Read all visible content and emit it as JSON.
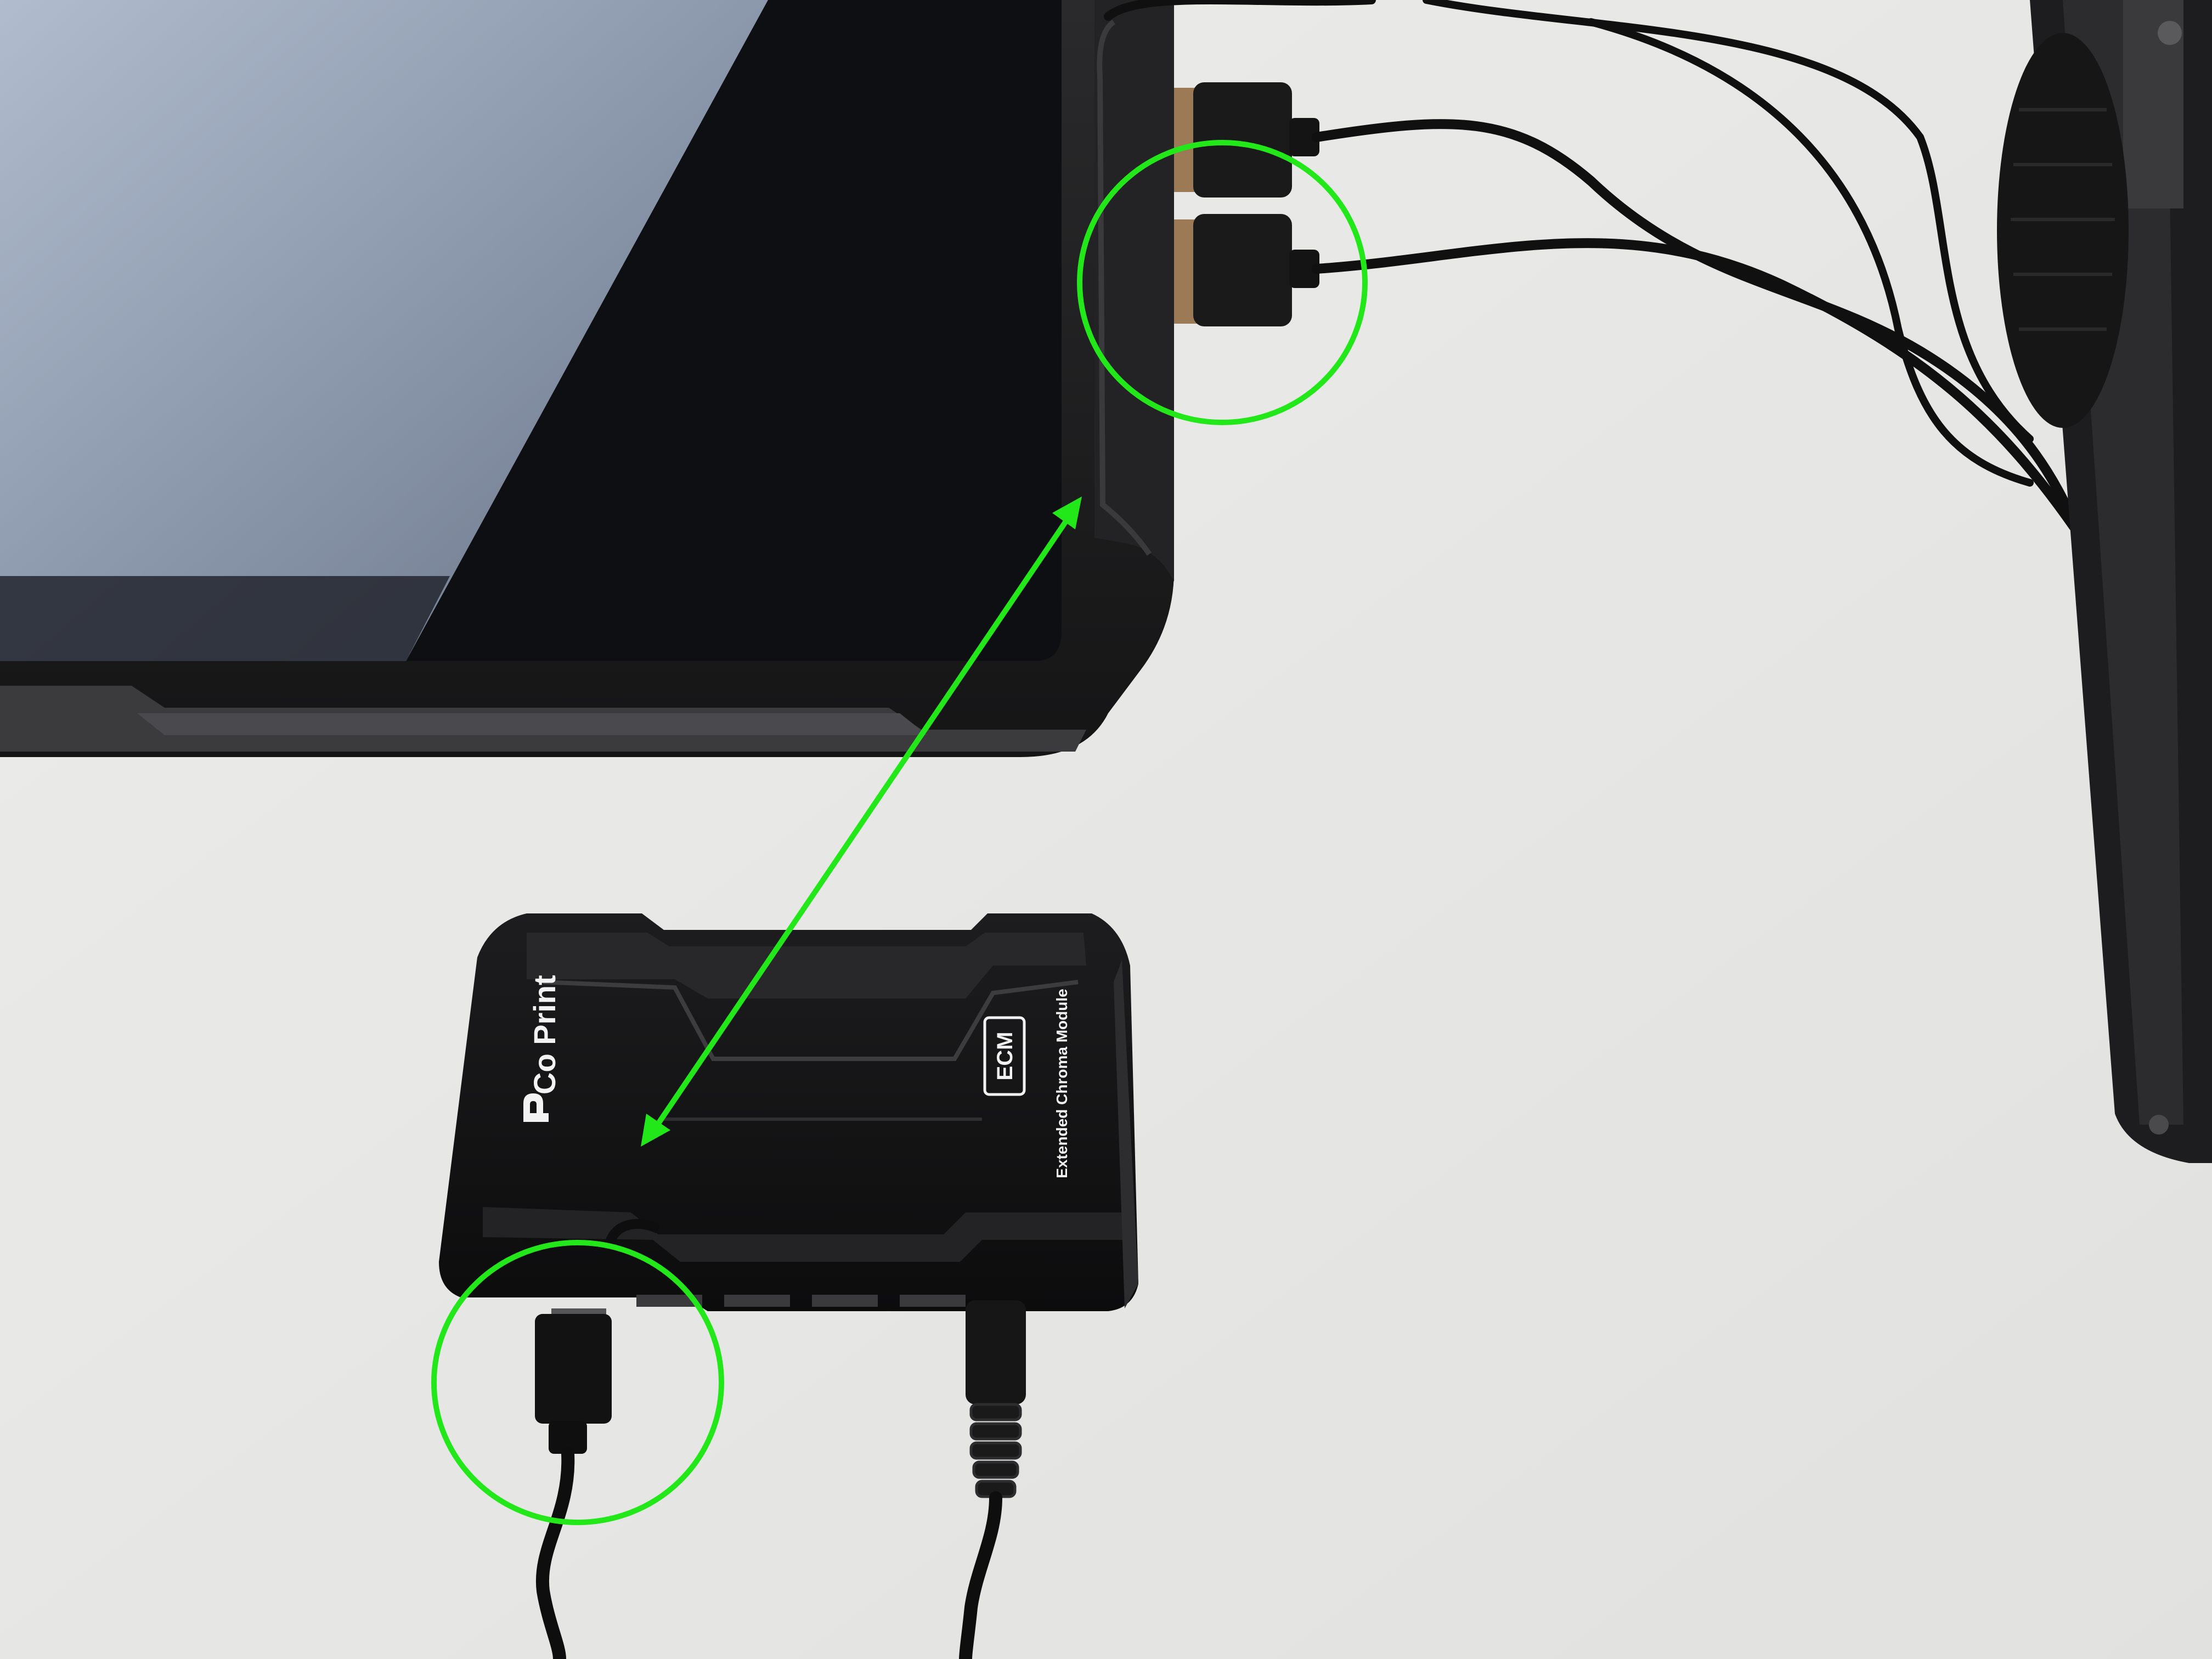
{
  "photo": {
    "module": {
      "brand": "Co Print",
      "badge": "ECM",
      "subtitle": "Extended Chroma Module"
    },
    "annotations": {
      "accent_color": "#22e81a",
      "highlight_circles": [
        "screen-usb-ports",
        "module-usb-c-port"
      ],
      "arrow": "double-headed"
    },
    "icons": {
      "brand_logo": "coprint-logo-icon"
    }
  }
}
